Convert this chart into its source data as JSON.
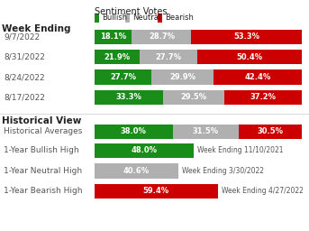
{
  "title": "Sentiment Votes",
  "legend_labels": [
    "Bullish",
    "Neutral",
    "Bearish"
  ],
  "colors": {
    "bullish": "#1a8c1a",
    "neutral": "#b0b0b0",
    "bearish": "#cc0000",
    "background": "#ffffff",
    "text_dark": "#222222",
    "text_label": "#555555"
  },
  "weekly_rows": [
    {
      "label": "9/7/2022",
      "bullish": 18.1,
      "neutral": 28.7,
      "bearish": 53.3
    },
    {
      "label": "8/31/2022",
      "bullish": 21.9,
      "neutral": 27.7,
      "bearish": 50.4
    },
    {
      "label": "8/24/2022",
      "bullish": 27.7,
      "neutral": 29.9,
      "bearish": 42.4
    },
    {
      "label": "8/17/2022",
      "bullish": 33.3,
      "neutral": 29.5,
      "bearish": 37.2
    }
  ],
  "historical_rows": [
    {
      "label": "Historical Averages",
      "bullish": 38.0,
      "neutral": 31.5,
      "bearish": 30.5,
      "note": "",
      "type": "all"
    },
    {
      "label": "1-Year Bullish High",
      "bullish": 48.0,
      "neutral": 0,
      "bearish": 0,
      "note": "Week Ending 11/10/2021",
      "type": "bullish"
    },
    {
      "label": "1-Year Neutral High",
      "bullish": 0,
      "neutral": 40.6,
      "bearish": 0,
      "note": "Week Ending 3/30/2022",
      "type": "neutral"
    },
    {
      "label": "1-Year Bearish High",
      "bullish": 0,
      "neutral": 0,
      "bearish": 59.4,
      "note": "Week Ending 4/27/2022",
      "type": "bearish"
    }
  ],
  "font_size_label": 6.5,
  "font_size_bar": 6.0,
  "font_size_title": 7.0,
  "font_size_section": 7.5
}
